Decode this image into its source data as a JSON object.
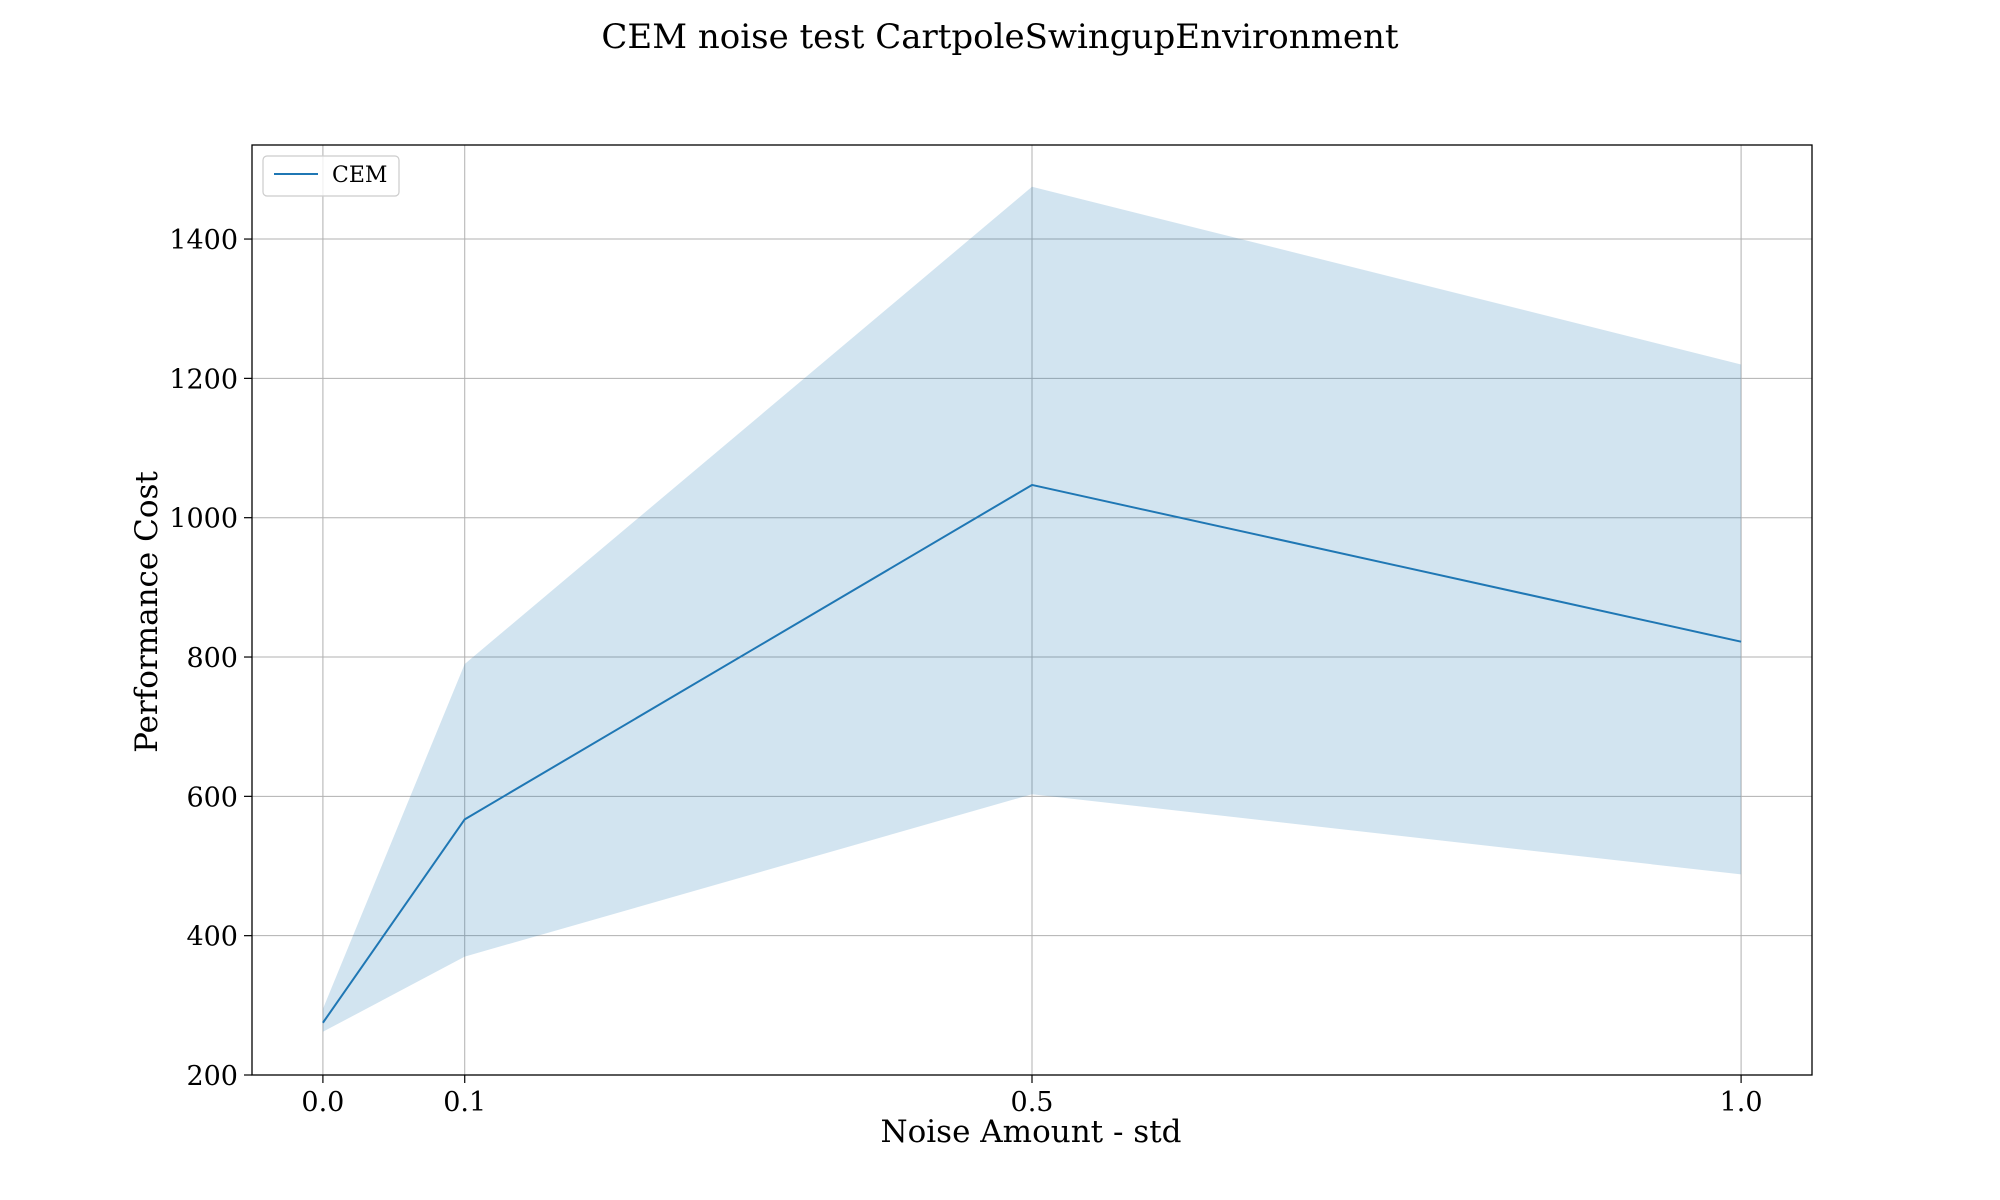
{
  "chart_data": {
    "type": "line",
    "title": "CEM noise test CartpoleSwingupEnvironment",
    "xlabel": "Noise Amount - std",
    "ylabel": "Performance Cost",
    "x": [
      0.0,
      0.1,
      0.5,
      1.0
    ],
    "x_tick_labels": [
      "0.0",
      "0.1",
      "0.5",
      "1.0"
    ],
    "y_tick_values": [
      200,
      400,
      600,
      800,
      1000,
      1200,
      1400
    ],
    "y_tick_labels": [
      "200",
      "400",
      "600",
      "800",
      "1000",
      "1200",
      "1400"
    ],
    "xlim": [
      -0.05,
      1.05
    ],
    "ylim": [
      200,
      1535
    ],
    "grid": true,
    "legend_position": "upper-left",
    "series": [
      {
        "name": "CEM",
        "color": "#1f77b4",
        "values": [
          275,
          567,
          1047,
          822
        ],
        "band_upper": [
          295,
          790,
          1475,
          1220
        ],
        "band_lower": [
          262,
          370,
          603,
          488
        ],
        "band_color": "#1f77b4"
      }
    ]
  }
}
